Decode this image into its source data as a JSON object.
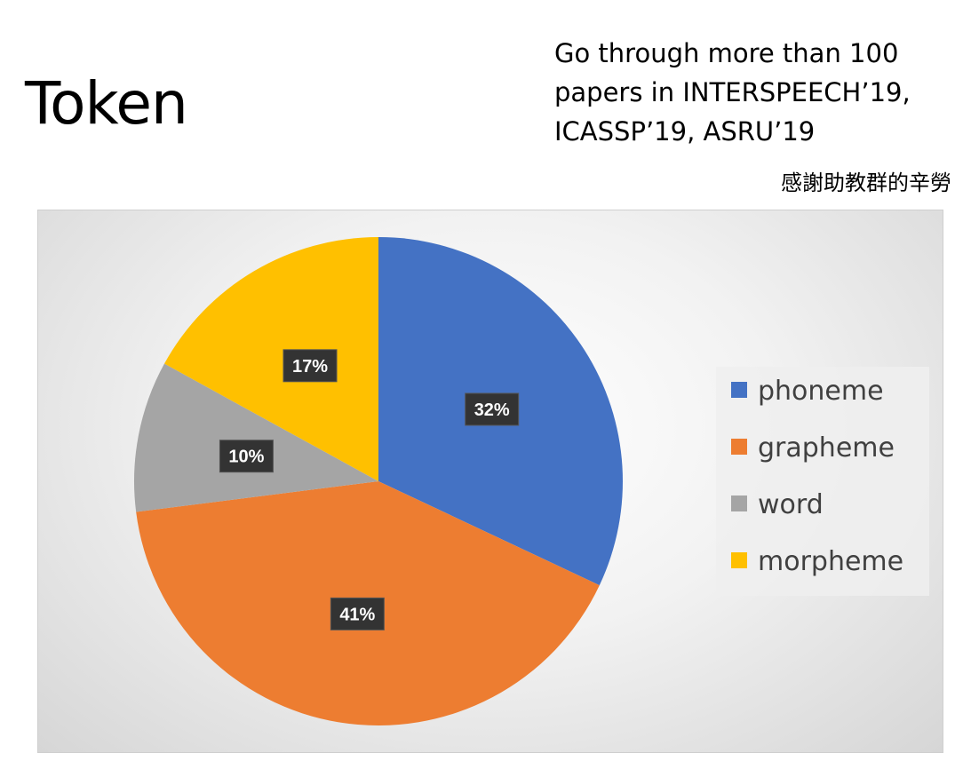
{
  "slide": {
    "title": "Token",
    "note_lines": [
      "Go through more than 100",
      "papers in INTERSPEECH’19,",
      "ICASSP’19, ASRU’19"
    ],
    "thanks": "感謝助教群的辛勞"
  },
  "chart_data": {
    "type": "pie",
    "title": "",
    "categories": [
      "phoneme",
      "grapheme",
      "word",
      "morpheme"
    ],
    "values": [
      32,
      41,
      10,
      17
    ],
    "labels": [
      "32%",
      "41%",
      "10%",
      "17%"
    ],
    "colors": [
      "#4472c4",
      "#ed7d31",
      "#a5a5a5",
      "#ffc000"
    ],
    "legend_position": "right",
    "start_angle": "12 o'clock, clockwise"
  }
}
